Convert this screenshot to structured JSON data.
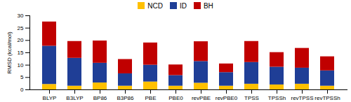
{
  "chart_data": {
    "type": "bar",
    "stacked": true,
    "categories": [
      "BLYP",
      "B3LYP",
      "BP86",
      "B3P86",
      "PBE",
      "PBE0",
      "revPBE",
      "revPBE0",
      "TPSS",
      "TPSSh",
      "revTPSS",
      "revTPSSh"
    ],
    "series": [
      {
        "name": "NCD",
        "color": "#FFC000",
        "values": [
          2.2,
          1.5,
          2.8,
          1.5,
          3.2,
          1.5,
          2.7,
          1.5,
          2.3,
          2.0,
          2.3,
          1.5
        ]
      },
      {
        "name": "ID",
        "color": "#1F3E96",
        "values": [
          15.5,
          11.3,
          8.0,
          5.0,
          6.8,
          4.3,
          8.8,
          5.5,
          8.8,
          7.2,
          6.5,
          6.2
        ]
      },
      {
        "name": "BH",
        "color": "#C00000",
        "values": [
          9.8,
          6.8,
          9.0,
          5.8,
          9.0,
          4.3,
          8.0,
          3.5,
          8.5,
          5.9,
          8.0,
          5.7
        ]
      }
    ],
    "ylabel": "RMSD (kcal/mol)",
    "ylim": [
      0,
      30
    ],
    "yticks": [
      0,
      5,
      10,
      15,
      20,
      25,
      30
    ],
    "legend": "upper center"
  }
}
